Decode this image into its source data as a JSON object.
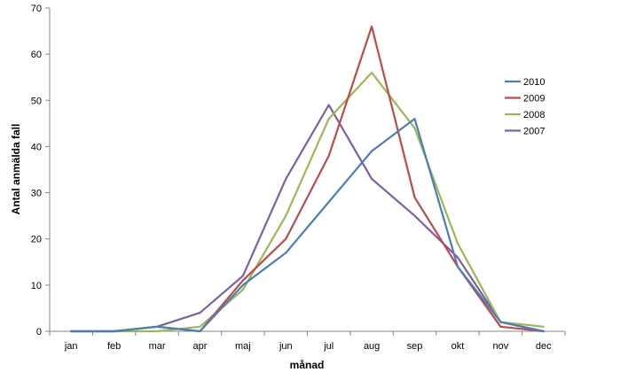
{
  "chart_data": {
    "type": "line",
    "xlabel": "månad",
    "ylabel": "Antal anmälda fall",
    "ylim": [
      0,
      70
    ],
    "yticks": [
      0,
      10,
      20,
      30,
      40,
      50,
      60,
      70
    ],
    "grid": false,
    "legend_position": "right",
    "categories": [
      "jan",
      "feb",
      "mar",
      "apr",
      "maj",
      "jun",
      "jul",
      "aug",
      "sep",
      "okt",
      "nov",
      "dec"
    ],
    "series": [
      {
        "name": "2010",
        "color": "#4A7EBB",
        "values": [
          0,
          0,
          1,
          0,
          10,
          17,
          28,
          39,
          46,
          14,
          2,
          0
        ]
      },
      {
        "name": "2009",
        "color": "#BE4B48",
        "values": [
          0,
          0,
          1,
          0,
          11,
          20,
          38,
          66,
          29,
          14,
          1,
          0
        ]
      },
      {
        "name": "2008",
        "color": "#98B954",
        "values": [
          0,
          0,
          0,
          1,
          9,
          25,
          46,
          56,
          44,
          19,
          2,
          1
        ]
      },
      {
        "name": "2007",
        "color": "#7D60A0",
        "values": [
          0,
          0,
          1,
          4,
          12,
          33,
          49,
          33,
          25,
          16,
          2,
          0
        ]
      }
    ]
  }
}
